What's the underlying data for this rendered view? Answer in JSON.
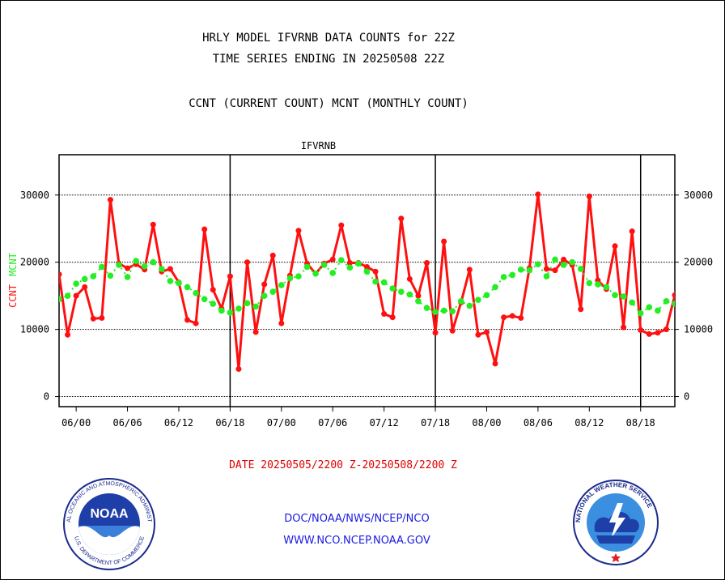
{
  "header": {
    "title1": "HRLY MODEL IFVRNB DATA COUNTS for 22Z",
    "title2": "TIME SERIES ENDING IN 20250508 22Z",
    "subtitle": "CCNT (CURRENT COUNT) MCNT (MONTHLY COUNT)"
  },
  "footer": {
    "date_range": "DATE 20250505/2200 Z-20250508/2200 Z",
    "link1": "DOC/NOAA/NWS/NCEP/NCO",
    "link2": "WWW.NCO.NCEP.NOAA.GOV"
  },
  "logos": {
    "noaa": {
      "text": "NOAA",
      "ring_text": "NATIONAL OCEANIC AND ATMOSPHERIC ADMINISTRATION",
      "ring_text_bottom": "U.S. DEPARTMENT OF COMMERCE"
    },
    "nws": {
      "ring_text": "NATIONAL WEATHER SERVICE"
    }
  },
  "chart_data": {
    "type": "line",
    "title": "IFVRNB",
    "ylabel_left": "CCNT",
    "ylabel_right": "MCNT",
    "ylim": [
      -1500,
      36000
    ],
    "yticks": [
      0,
      10000,
      20000,
      30000
    ],
    "x_tick_labels": [
      "06/00",
      "06/06",
      "06/12",
      "06/18",
      "07/00",
      "07/06",
      "07/12",
      "07/18",
      "08/00",
      "08/06",
      "08/12",
      "08/18"
    ],
    "x_tick_hours": [
      2,
      8,
      14,
      20,
      26,
      32,
      38,
      44,
      50,
      56,
      62,
      68
    ],
    "day_boundaries": [
      20,
      44,
      68
    ],
    "x_range": [
      0,
      72
    ],
    "colors": {
      "ccnt": "#ff1010",
      "mcnt": "#22ee22",
      "title": "#1a1ae0"
    },
    "series": [
      {
        "name": "CCNT",
        "values": [
          18200,
          9200,
          15000,
          16300,
          11600,
          11700,
          29300,
          19800,
          19100,
          19700,
          18900,
          25600,
          18600,
          19000,
          17000,
          11400,
          10900,
          24900,
          15900,
          13100,
          17900,
          4100,
          20000,
          9600,
          16700,
          21000,
          10900,
          18000,
          24700,
          19800,
          18300,
          19800,
          20400,
          25500,
          19900,
          19900,
          19300,
          18600,
          12300,
          11800,
          26500,
          17500,
          15000,
          19900,
          9500,
          23100,
          9800,
          14000,
          18900,
          9200,
          9600,
          4900,
          11800,
          12000,
          11700,
          19100,
          30100,
          19000,
          18800,
          20400,
          19600,
          13000,
          29800,
          17300,
          16000,
          22400,
          10300,
          24600,
          9900,
          9300,
          9500,
          10000,
          15100,
          20400
        ]
      },
      {
        "name": "MCNT",
        "values": [
          14500,
          15000,
          16800,
          17500,
          17900,
          19300,
          18000,
          19600,
          17800,
          20200,
          19400,
          20000,
          19000,
          17200,
          16900,
          16300,
          15400,
          14500,
          13800,
          12800,
          12500,
          13100,
          13900,
          13400,
          15000,
          15600,
          16600,
          17600,
          17900,
          19300,
          18300,
          19600,
          18400,
          20300,
          19200,
          19800,
          18600,
          17100,
          17000,
          16100,
          15600,
          15200,
          14200,
          13200,
          12600,
          12800,
          12700,
          14200,
          13500,
          14400,
          15100,
          16300,
          17800,
          18100,
          18900,
          18800,
          19700,
          17900,
          20400,
          19600,
          20000,
          19000,
          16900,
          16700,
          16300,
          15100,
          14900,
          14000,
          12400,
          13300,
          12800,
          14200,
          13800,
          14700
        ]
      }
    ]
  }
}
